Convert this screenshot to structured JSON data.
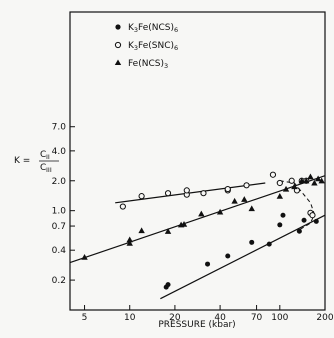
{
  "chart_data": {
    "type": "scatter",
    "xlabel": "PRESSURE (kbar)",
    "ylabel": "K = C_II / C_III",
    "ylabel_parts": {
      "k": "K =",
      "num": "C",
      "num_sub": "II",
      "den": "C",
      "den_sub": "III"
    },
    "xscale": "log",
    "yscale": "log",
    "xlim": [
      4,
      200
    ],
    "ylim": [
      0.1,
      100
    ],
    "xticks": [
      5,
      10,
      20,
      40,
      70,
      100,
      200
    ],
    "yticks": [
      0.2,
      0.4,
      0.7,
      1.0,
      2.0,
      4.0,
      7.0
    ],
    "ytick_labels": [
      "0.2",
      "0.4",
      "0.7",
      "1.0",
      "2.0",
      "4.0",
      "7.0"
    ],
    "legend_position": "top-left",
    "grid": false,
    "series": [
      {
        "name": "K3Fe(NCS)6",
        "name_parts": {
          "a": "K",
          "a_sub": "3",
          "b": "Fe(NCS)",
          "b_sub": "6"
        },
        "marker": "filled-circle",
        "x": [
          17.5,
          18,
          33,
          45,
          65,
          85,
          100,
          105,
          135,
          145,
          160,
          175
        ],
        "y": [
          0.17,
          0.18,
          0.29,
          0.35,
          0.48,
          0.46,
          0.72,
          0.9,
          0.62,
          0.8,
          0.95,
          0.78
        ],
        "fit": {
          "x": [
            16,
            200
          ],
          "y": [
            0.13,
            0.9
          ]
        }
      },
      {
        "name": "K3Fe(SNC)6",
        "name_parts": {
          "a": "K",
          "a_sub": "3",
          "b": "Fe(SNC)",
          "b_sub": "6"
        },
        "marker": "open-circle",
        "x": [
          9,
          12,
          18,
          24,
          24,
          31,
          45,
          45,
          60,
          90,
          100,
          120,
          130,
          140,
          150,
          160,
          165
        ],
        "y": [
          1.1,
          1.4,
          1.5,
          1.45,
          1.6,
          1.5,
          1.6,
          1.65,
          1.8,
          2.3,
          1.9,
          2.0,
          1.6,
          2.0,
          2.0,
          0.95,
          0.9
        ],
        "fit": {
          "x": [
            8,
            80
          ],
          "y": [
            1.2,
            1.9
          ]
        }
      },
      {
        "name": "Fe(NCS)3",
        "name_parts": {
          "a": "Fe(NCS)",
          "a_sub": "3"
        },
        "marker": "filled-triangle",
        "x": [
          5,
          10,
          10,
          12,
          18,
          22,
          23,
          30,
          40,
          50,
          58,
          65,
          100,
          110,
          125,
          140,
          150,
          160,
          170,
          180,
          190
        ],
        "y": [
          0.34,
          0.47,
          0.51,
          0.63,
          0.62,
          0.72,
          0.73,
          0.93,
          0.97,
          1.25,
          1.3,
          1.05,
          1.4,
          1.65,
          1.75,
          2.0,
          2.0,
          2.2,
          1.9,
          2.1,
          2.0
        ],
        "fit": {
          "x": [
            4,
            200
          ],
          "y": [
            0.3,
            2.25
          ]
        }
      }
    ],
    "annotation": {
      "type": "dashed-curve",
      "x": [
        100,
        125,
        160,
        170,
        160,
        130
      ],
      "y": [
        2.0,
        1.9,
        1.2,
        0.92,
        0.75,
        0.62
      ]
    }
  }
}
